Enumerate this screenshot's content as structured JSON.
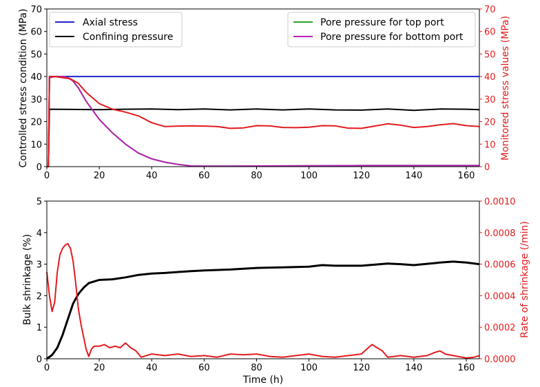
{
  "chart_data": [
    {
      "type": "line",
      "panel": "top",
      "xlabel": "",
      "ylabel": "Controlled stress condition (MPa)",
      "ylabel_right": "Monitored stress values (MPa)",
      "xlim": [
        0,
        165
      ],
      "ylim": [
        0,
        70
      ],
      "ylim_right": [
        0,
        70
      ],
      "x_ticks": [
        "0",
        "20",
        "40",
        "60",
        "80",
        "100",
        "120",
        "140",
        "160"
      ],
      "y_ticks": [
        "0",
        "10",
        "20",
        "30",
        "40",
        "50",
        "60",
        "70"
      ],
      "y_ticks_right": [
        "0",
        "10",
        "20",
        "30",
        "40",
        "50",
        "60",
        "70"
      ],
      "right_axis_color": "#e31a1c",
      "grid": false,
      "legend_left": [
        "Axial stress",
        "Confining pressure"
      ],
      "legend_right": [
        "Pore pressure for top port",
        "Pore pressure for bottom port"
      ],
      "series": [
        {
          "name": "Axial stress",
          "axis": "left",
          "color": "#1f24c8",
          "x": [
            0,
            0.6,
            1,
            5,
            165
          ],
          "y": [
            0,
            0,
            40,
            40,
            40
          ]
        },
        {
          "name": "Confining pressure",
          "axis": "left",
          "color": "#000000",
          "x": [
            0,
            0.6,
            1,
            10,
            20,
            30,
            40,
            50,
            60,
            70,
            80,
            90,
            100,
            110,
            120,
            130,
            140,
            150,
            160,
            165
          ],
          "y": [
            0,
            0,
            25.5,
            25.4,
            25.3,
            25.5,
            25.6,
            25.3,
            25.6,
            25.2,
            25.6,
            25.2,
            25.6,
            25.2,
            25.1,
            25.6,
            25.0,
            25.6,
            25.5,
            25.3
          ]
        },
        {
          "name": "Pore pressure for top port",
          "axis": "right",
          "color": "#2ca02c",
          "x": [
            0,
            0.6,
            1,
            3,
            6,
            8,
            10,
            12,
            15,
            20,
            25,
            30,
            35,
            40,
            45,
            50,
            55,
            60,
            70,
            80,
            100,
            120,
            140,
            165
          ],
          "y": [
            0,
            0,
            39.5,
            40,
            40,
            39.5,
            38,
            35,
            29,
            21,
            15,
            10,
            6,
            3.5,
            2,
            1,
            0.3,
            0.2,
            0.2,
            0.3,
            0.4,
            0.5,
            0.5,
            0.5
          ]
        },
        {
          "name": "Pore pressure for bottom port",
          "axis": "right",
          "color": "#b321b3",
          "x": [
            0,
            0.6,
            1,
            3,
            6,
            8,
            10,
            12,
            15,
            20,
            25,
            30,
            35,
            40,
            45,
            50,
            55,
            60,
            70,
            80,
            100,
            120,
            140,
            165
          ],
          "y": [
            0,
            0,
            39.5,
            40,
            40,
            39.5,
            38,
            35,
            29,
            21,
            15,
            10,
            6,
            3.5,
            2,
            1,
            0.3,
            0.2,
            0.2,
            0.3,
            0.4,
            0.5,
            0.5,
            0.5
          ]
        },
        {
          "name": "",
          "axis": "right",
          "color": "#e31a1c",
          "x": [
            0,
            0.6,
            1,
            3,
            6,
            9,
            12,
            15,
            18,
            20,
            25,
            30,
            35,
            40,
            45,
            50,
            55,
            60,
            65,
            70,
            75,
            80,
            85,
            90,
            95,
            100,
            105,
            110,
            115,
            120,
            125,
            130,
            135,
            140,
            145,
            150,
            155,
            160,
            165
          ],
          "y": [
            0,
            0,
            40,
            40,
            39.5,
            39,
            37,
            33,
            30,
            28,
            25.5,
            24.2,
            22.5,
            19.5,
            17.8,
            18,
            18.1,
            18,
            17.8,
            17,
            17.2,
            18.2,
            18.1,
            17.4,
            17.3,
            17.5,
            18.2,
            18.1,
            17.1,
            17,
            18,
            19,
            18.4,
            17.4,
            17.8,
            18.6,
            19.1,
            18.2,
            17.8
          ]
        }
      ]
    },
    {
      "type": "line",
      "panel": "bottom",
      "xlabel": "Time (h)",
      "ylabel": "Bulk shrinkage (%)",
      "ylabel_right": "Rate of shrinkage (/min)",
      "xlim": [
        0,
        165
      ],
      "ylim": [
        0,
        5
      ],
      "ylim_right": [
        0,
        0.001
      ],
      "x_ticks": [
        "0",
        "20",
        "40",
        "60",
        "80",
        "100",
        "120",
        "140",
        "160"
      ],
      "y_ticks": [
        "0",
        "1",
        "2",
        "3",
        "4",
        "5"
      ],
      "y_ticks_right": [
        "0.0000",
        "0.0002",
        "0.0004",
        "0.0006",
        "0.0008",
        "0.0010"
      ],
      "right_axis_color": "#e31a1c",
      "grid": false,
      "series": [
        {
          "name": "Bulk shrinkage",
          "axis": "left",
          "color": "#000000",
          "x": [
            0,
            2,
            4,
            6,
            8,
            10,
            12,
            14,
            16,
            18,
            20,
            25,
            30,
            35,
            40,
            45,
            50,
            55,
            60,
            70,
            80,
            90,
            100,
            105,
            110,
            120,
            130,
            135,
            140,
            150,
            155,
            160,
            165
          ],
          "y": [
            0,
            0.12,
            0.35,
            0.75,
            1.25,
            1.75,
            2.05,
            2.25,
            2.4,
            2.45,
            2.5,
            2.52,
            2.58,
            2.66,
            2.7,
            2.72,
            2.75,
            2.78,
            2.8,
            2.83,
            2.88,
            2.9,
            2.92,
            2.97,
            2.95,
            2.95,
            3.02,
            3.0,
            2.97,
            3.05,
            3.08,
            3.05,
            3.0
          ]
        },
        {
          "name": "Rate of shrinkage",
          "axis": "right",
          "color": "#e31a1c",
          "x": [
            0,
            1,
            2,
            3,
            4,
            5,
            6,
            7,
            8,
            9,
            10,
            11,
            12,
            13,
            14,
            15,
            16,
            17,
            18,
            20,
            22,
            24,
            26,
            28,
            30,
            32,
            34,
            36,
            40,
            45,
            50,
            55,
            60,
            65,
            70,
            75,
            80,
            85,
            90,
            95,
            100,
            105,
            110,
            115,
            120,
            122,
            124,
            126,
            128,
            130,
            135,
            140,
            145,
            148,
            150,
            152,
            155,
            160,
            163,
            165
          ],
          "y": [
            0.00055,
            0.0004,
            0.0003,
            0.00036,
            0.00055,
            0.00066,
            0.0007,
            0.00072,
            0.00073,
            0.0007,
            0.00062,
            0.00048,
            0.00032,
            0.00022,
            0.00014,
            6e-05,
            1.5e-05,
            6e-05,
            8e-05,
            8e-05,
            9e-05,
            7e-05,
            8e-05,
            7e-05,
            0.0001,
            7e-05,
            5e-05,
            1e-05,
            3e-05,
            2e-05,
            3e-05,
            1.5e-05,
            2e-05,
            1e-05,
            3e-05,
            2.5e-05,
            3e-05,
            1.5e-05,
            1e-05,
            2e-05,
            3e-05,
            1.5e-05,
            1e-05,
            2e-05,
            3e-05,
            6e-05,
            9e-05,
            7e-05,
            5e-05,
            1e-05,
            2e-05,
            1e-05,
            2e-05,
            4e-05,
            5e-05,
            3e-05,
            2e-05,
            5e-06,
            1e-05,
            2e-05
          ]
        }
      ]
    }
  ]
}
